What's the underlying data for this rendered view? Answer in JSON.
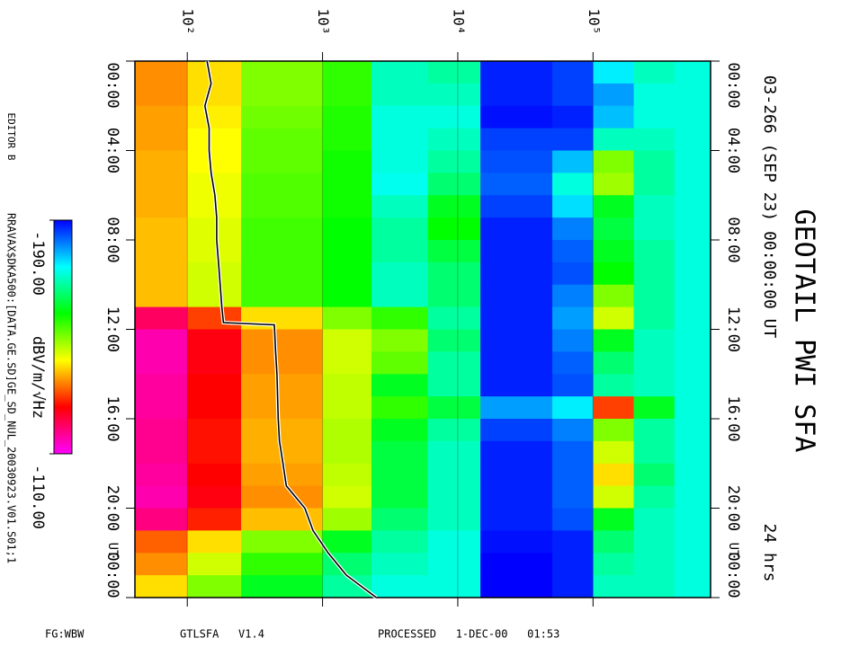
{
  "chart_data": {
    "type": "spectrogram",
    "title": "GEOTAIL PWI SFA",
    "subtitle": "03-266 (SEP 23) 00:00:00 UT",
    "duration_label": "24 hrs",
    "time_unit_label": "UT",
    "editor": "EDITOR B",
    "file": "RRAVAX$DKA500:[DATA.GE.SD]GE_SD_NUL_20030923.V01.S01;1",
    "footer": [
      "FG:WBW",
      "GTLSFA   V1.4",
      "PROCESSED   1-DEC-00   01:53"
    ],
    "xscale": "log",
    "xlim": [
      41,
      740000
    ],
    "xticks": [
      {
        "value": 100,
        "label": "10²"
      },
      {
        "value": 1000,
        "label": "10³"
      },
      {
        "value": 10000,
        "label": "10⁴"
      },
      {
        "value": 100000,
        "label": "10⁵"
      }
    ],
    "ylim": [
      0,
      24
    ],
    "yticks": [
      {
        "value": 0,
        "label": "00:00"
      },
      {
        "value": 4,
        "label": "04:00"
      },
      {
        "value": 8,
        "label": "08:00"
      },
      {
        "value": 12,
        "label": "12:00"
      },
      {
        "value": 16,
        "label": "16:00"
      },
      {
        "value": 20,
        "label": "20:00"
      },
      {
        "value": 24,
        "label": "00:00"
      }
    ],
    "colorbar_label": "dBV/m/√Hz",
    "zlim": [
      -190,
      -110
    ],
    "zticks": [
      {
        "value": -190,
        "label": "-190.00"
      },
      {
        "value": -110,
        "label": "-110.00"
      }
    ],
    "colorscale": [
      "#0000ff",
      "#00ffff",
      "#00ff00",
      "#ffff00",
      "#ff0000",
      "#ff00ff"
    ],
    "freq_bins": [
      41,
      100,
      250,
      1000,
      2300,
      6000,
      14700,
      50000,
      100000,
      200000,
      400000,
      740000
    ],
    "time_bins": [
      0,
      1,
      2,
      3,
      4,
      5,
      6,
      7,
      8,
      9,
      10,
      11,
      12,
      13,
      14,
      15,
      16,
      17,
      18,
      19,
      20,
      21,
      22,
      23,
      24
    ],
    "z": [
      [
        -135,
        -140,
        -150,
        -155,
        -170,
        -168,
        -188,
        -186,
        -175,
        -170,
        -172
      ],
      [
        -135,
        -140,
        -150,
        -155,
        -170,
        -170,
        -188,
        -186,
        -180,
        -172,
        -172
      ],
      [
        -136,
        -141,
        -151,
        -156,
        -172,
        -172,
        -189,
        -188,
        -178,
        -172,
        -172
      ],
      [
        -136,
        -142,
        -152,
        -156,
        -172,
        -170,
        -186,
        -186,
        -170,
        -170,
        -172
      ],
      [
        -137,
        -142,
        -152,
        -157,
        -172,
        -168,
        -185,
        -178,
        -150,
        -168,
        -172
      ],
      [
        -137,
        -143,
        -153,
        -157,
        -173,
        -165,
        -184,
        -172,
        -148,
        -168,
        -172
      ],
      [
        -137,
        -143,
        -153,
        -157,
        -170,
        -160,
        -186,
        -176,
        -160,
        -170,
        -172
      ],
      [
        -138,
        -144,
        -154,
        -158,
        -168,
        -158,
        -188,
        -182,
        -162,
        -170,
        -172
      ],
      [
        -138,
        -144,
        -154,
        -158,
        -168,
        -162,
        -188,
        -184,
        -160,
        -168,
        -172
      ],
      [
        -138,
        -145,
        -154,
        -158,
        -170,
        -165,
        -188,
        -185,
        -158,
        -168,
        -172
      ],
      [
        -138,
        -145,
        -154,
        -158,
        -170,
        -165,
        -188,
        -182,
        -150,
        -168,
        -172
      ],
      [
        -120,
        -130,
        -140,
        -150,
        -155,
        -168,
        -188,
        -180,
        -145,
        -168,
        -172
      ],
      [
        -115,
        -125,
        -135,
        -145,
        -150,
        -165,
        -188,
        -182,
        -160,
        -170,
        -172
      ],
      [
        -115,
        -125,
        -135,
        -145,
        -152,
        -168,
        -188,
        -184,
        -165,
        -170,
        -172
      ],
      [
        -116,
        -126,
        -136,
        -146,
        -160,
        -168,
        -188,
        -185,
        -168,
        -170,
        -172
      ],
      [
        -116,
        -126,
        -136,
        -146,
        -155,
        -162,
        -180,
        -175,
        -130,
        -160,
        -172
      ],
      [
        -117,
        -127,
        -137,
        -147,
        -160,
        -168,
        -186,
        -182,
        -150,
        -168,
        -172
      ],
      [
        -117,
        -127,
        -137,
        -147,
        -162,
        -170,
        -188,
        -184,
        -145,
        -168,
        -172
      ],
      [
        -116,
        -126,
        -136,
        -146,
        -162,
        -170,
        -188,
        -184,
        -140,
        -165,
        -172
      ],
      [
        -115,
        -125,
        -135,
        -145,
        -162,
        -170,
        -188,
        -184,
        -145,
        -168,
        -172
      ],
      [
        -118,
        -128,
        -138,
        -148,
        -165,
        -170,
        -188,
        -185,
        -160,
        -170,
        -172
      ],
      [
        -132,
        -140,
        -150,
        -160,
        -168,
        -172,
        -189,
        -188,
        -165,
        -170,
        -172
      ],
      [
        -135,
        -145,
        -155,
        -165,
        -170,
        -172,
        -190,
        -188,
        -168,
        -170,
        -172
      ],
      [
        -140,
        -150,
        -160,
        -168,
        -172,
        -172,
        -190,
        -188,
        -170,
        -170,
        -172
      ]
    ],
    "trace": {
      "color": "#000000",
      "time": [
        0,
        1,
        2,
        3,
        4,
        5,
        6,
        7,
        8,
        9,
        10,
        11,
        11.7,
        11.8,
        13,
        14,
        15,
        16,
        17,
        18,
        19,
        20,
        21,
        22,
        23,
        24
      ],
      "freq": [
        140,
        150,
        135,
        145,
        145,
        150,
        160,
        165,
        165,
        170,
        175,
        180,
        185,
        440,
        450,
        460,
        465,
        470,
        480,
        510,
        540,
        740,
        850,
        1100,
        1500,
        2500
      ]
    }
  }
}
